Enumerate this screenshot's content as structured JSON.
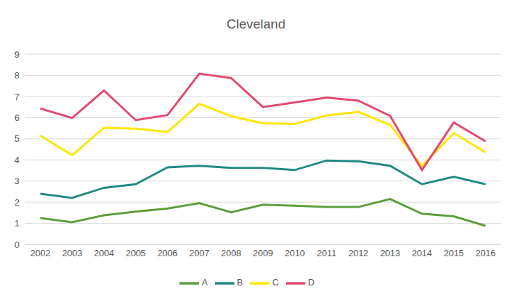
{
  "chart_data": {
    "type": "line",
    "title": "Cleveland",
    "categories": [
      "2002",
      "2003",
      "2004",
      "2005",
      "2006",
      "2007",
      "2008",
      "2009",
      "2010",
      "2011",
      "2012",
      "2013",
      "2014",
      "2015",
      "2016"
    ],
    "series": [
      {
        "name": "A",
        "color": "#5b9e3a",
        "values": [
          1.25,
          1.05,
          1.38,
          1.55,
          1.7,
          1.95,
          1.52,
          1.88,
          1.83,
          1.77,
          1.77,
          2.15,
          1.45,
          1.33,
          0.88
        ]
      },
      {
        "name": "B",
        "color": "#1f8a84",
        "values": [
          2.4,
          2.2,
          2.68,
          2.85,
          3.65,
          3.72,
          3.62,
          3.62,
          3.52,
          3.97,
          3.93,
          3.72,
          2.85,
          3.2,
          2.85
        ]
      },
      {
        "name": "C",
        "color": "#ffe600",
        "values": [
          5.15,
          4.22,
          5.52,
          5.48,
          5.32,
          6.65,
          6.07,
          5.73,
          5.7,
          6.1,
          6.27,
          5.65,
          3.7,
          5.27,
          4.35
        ]
      },
      {
        "name": "D",
        "color": "#e24a6e",
        "values": [
          6.43,
          5.98,
          7.28,
          5.88,
          6.12,
          8.08,
          7.87,
          6.5,
          6.72,
          6.95,
          6.8,
          6.08,
          3.52,
          5.77,
          4.88
        ]
      }
    ],
    "ylim": [
      0,
      9
    ],
    "yticks": [
      0,
      1,
      2,
      3,
      4,
      5,
      6,
      7,
      8,
      9
    ],
    "grid": true,
    "legend": "bottom"
  }
}
